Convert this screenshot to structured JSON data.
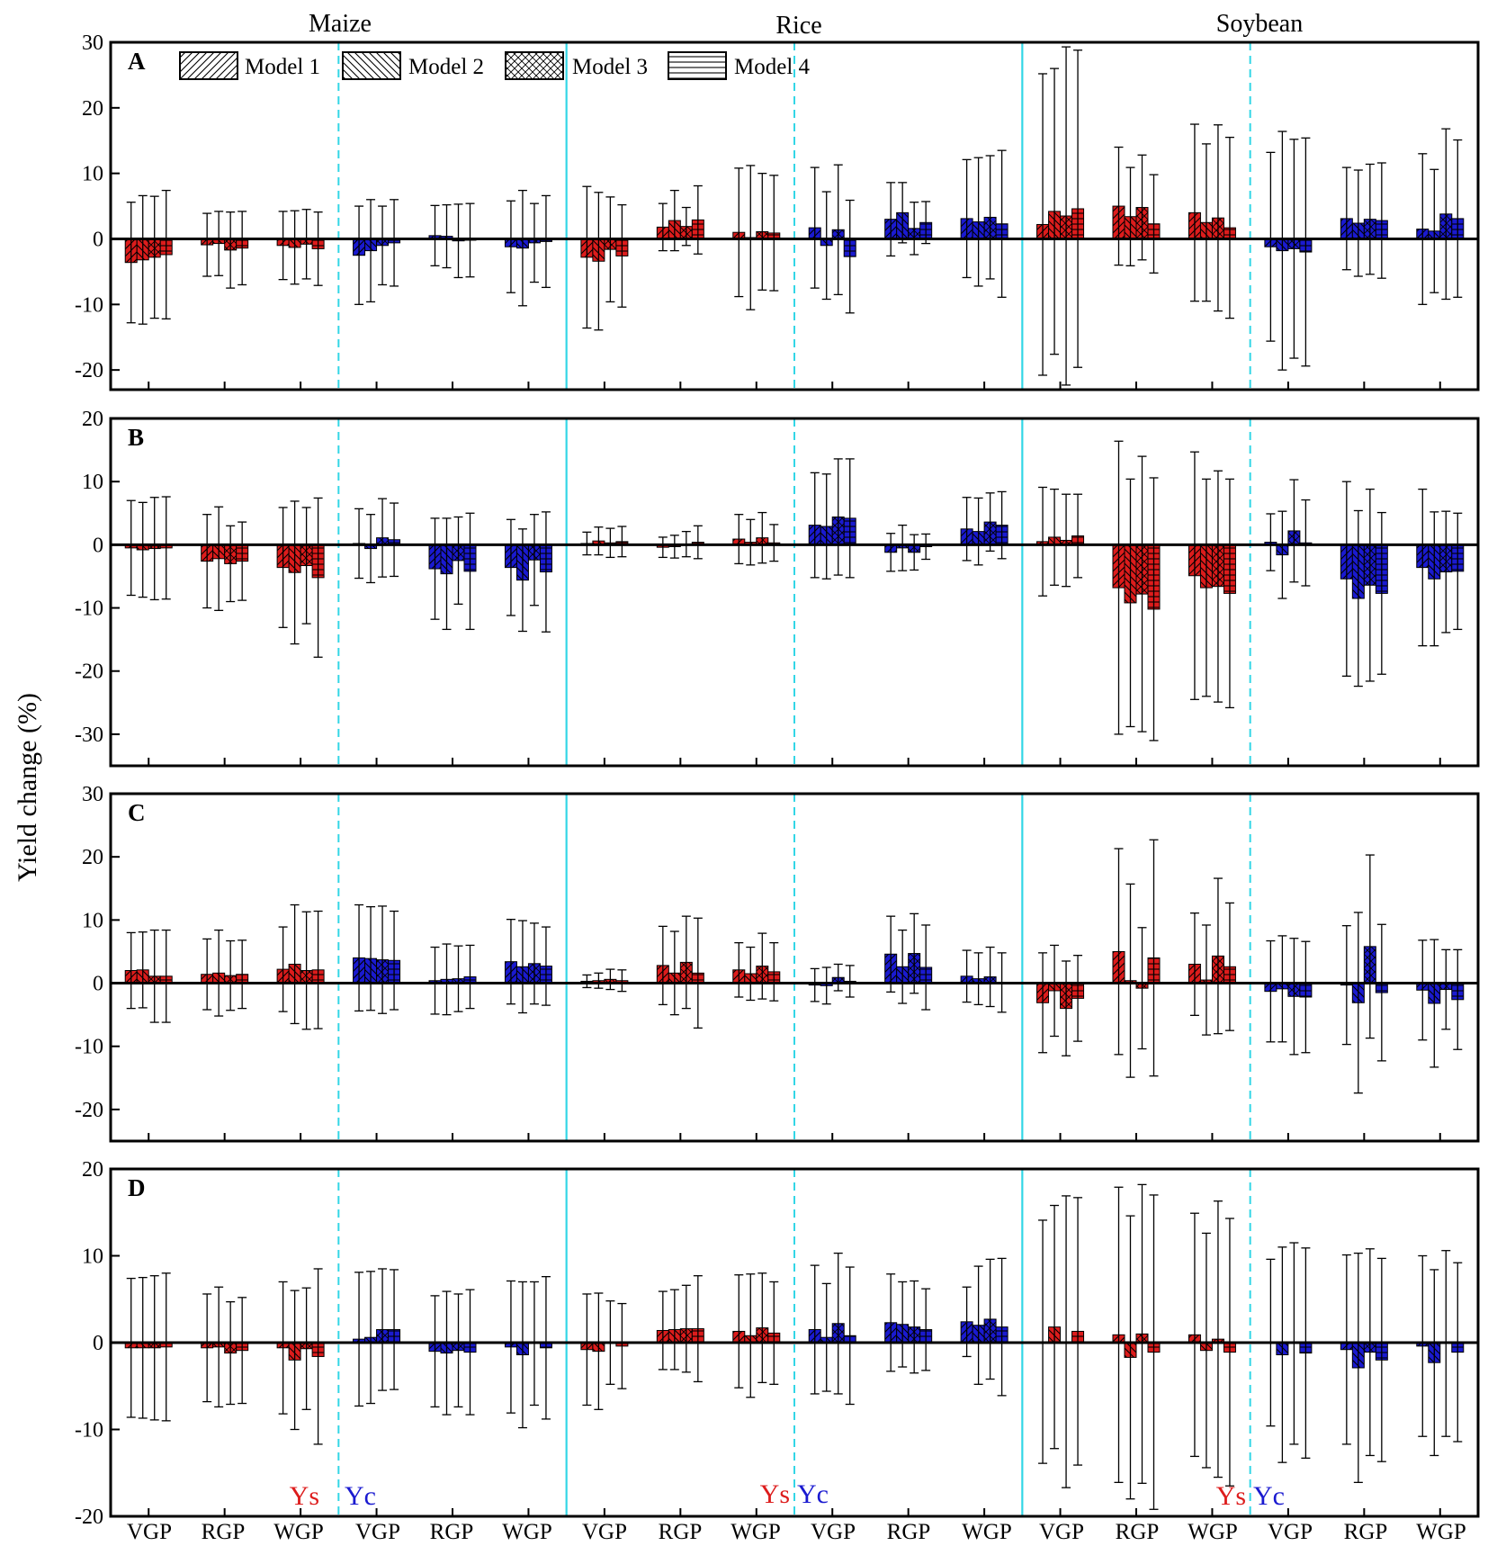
{
  "colors": {
    "ys": "#dd1c1c",
    "yc": "#1a1ad0",
    "separator": "#33d6e6",
    "axis": "#000000"
  },
  "chart_data": {
    "type": "bar",
    "ylabel": "Yield change (%)",
    "crops": [
      "Maize",
      "Rice",
      "Soybean"
    ],
    "groups": [
      "Ys",
      "Yc"
    ],
    "periods": [
      "VGP",
      "RGP",
      "WGP"
    ],
    "models": [
      "Model 1",
      "Model 2",
      "Model 3",
      "Model 4"
    ],
    "patterns": [
      "diagonal-right",
      "diagonal-left",
      "crosshatch",
      "horizontal-lines"
    ],
    "x_tick_labels": [
      "VGP",
      "RGP",
      "WGP",
      "VGP",
      "RGP",
      "WGP",
      "VGP",
      "RGP",
      "WGP",
      "VGP",
      "RGP",
      "WGP",
      "VGP",
      "RGP",
      "WGP",
      "VGP",
      "RGP",
      "WGP"
    ],
    "group_labels": [
      {
        "ys": "Ys",
        "yc": "Yc"
      },
      {
        "ys": "Ys",
        "yc": "Yc"
      },
      {
        "ys": "Ys",
        "yc": "Yc"
      }
    ],
    "panels": [
      {
        "label": "A",
        "ylim": [
          -23,
          30
        ],
        "yticks": [
          -20,
          -10,
          0,
          10,
          20,
          30
        ],
        "ytick_labels": [
          "-20",
          "-10",
          "0",
          "10",
          "20",
          "30"
        ],
        "values": [
          [
            -3.6,
            -3.2,
            -2.8,
            -2.4
          ],
          [
            -0.9,
            -0.7,
            -1.7,
            -1.4
          ],
          [
            -1.0,
            -1.3,
            -0.8,
            -1.5
          ],
          [
            -2.5,
            -1.8,
            -1.0,
            -0.6
          ],
          [
            0.5,
            0.4,
            -0.3,
            -0.2
          ],
          [
            -1.2,
            -1.4,
            -0.6,
            -0.4
          ],
          [
            -2.8,
            -3.4,
            -1.6,
            -2.6
          ],
          [
            1.8,
            2.8,
            1.9,
            2.9
          ],
          [
            1.0,
            0.2,
            1.1,
            0.9
          ],
          [
            1.7,
            -1.0,
            1.4,
            -2.7
          ],
          [
            3.0,
            4.0,
            1.6,
            2.5
          ],
          [
            3.1,
            2.6,
            3.3,
            2.3
          ],
          [
            2.2,
            4.2,
            3.5,
            4.6
          ],
          [
            5.0,
            3.4,
            4.8,
            2.3
          ],
          [
            4.0,
            2.5,
            3.2,
            1.7
          ],
          [
            -1.2,
            -1.8,
            -1.5,
            -2.0
          ],
          [
            3.1,
            2.4,
            3.0,
            2.8
          ],
          [
            1.5,
            1.2,
            3.8,
            3.1
          ]
        ],
        "errors": [
          [
            9.2,
            9.8,
            9.3,
            9.8
          ],
          [
            4.8,
            4.9,
            5.8,
            5.6
          ],
          [
            5.2,
            5.6,
            5.3,
            5.6
          ],
          [
            7.5,
            7.8,
            6.0,
            6.6
          ],
          [
            4.6,
            4.8,
            5.6,
            5.6
          ],
          [
            7.0,
            8.8,
            6.0,
            7.0
          ],
          [
            10.8,
            10.5,
            8.0,
            7.8
          ],
          [
            3.6,
            4.6,
            2.9,
            5.2
          ],
          [
            9.8,
            11.0,
            8.9,
            8.8
          ],
          [
            9.2,
            8.2,
            9.9,
            8.6
          ],
          [
            5.6,
            4.6,
            4.0,
            3.2
          ],
          [
            9.0,
            9.8,
            9.4,
            11.2
          ],
          [
            23.0,
            21.8,
            25.8,
            24.2
          ],
          [
            9.0,
            7.5,
            8.0,
            7.5
          ],
          [
            13.5,
            12.0,
            14.2,
            13.8
          ],
          [
            14.4,
            18.2,
            16.7,
            17.4
          ],
          [
            7.8,
            8.1,
            8.4,
            8.8
          ],
          [
            11.5,
            9.4,
            13.0,
            12.0
          ]
        ]
      },
      {
        "label": "B",
        "ylim": [
          -35,
          20
        ],
        "yticks": [
          -30,
          -20,
          -10,
          0,
          10,
          20
        ],
        "ytick_labels": [
          "-30",
          "-20",
          "-10",
          "0",
          "10",
          "20"
        ],
        "values": [
          [
            -0.5,
            -0.8,
            -0.6,
            -0.5
          ],
          [
            -2.6,
            -2.2,
            -3.0,
            -2.6
          ],
          [
            -3.6,
            -4.4,
            -3.3,
            -5.2
          ],
          [
            0.2,
            -0.6,
            1.1,
            0.8
          ],
          [
            -3.8,
            -4.6,
            -2.5,
            -4.2
          ],
          [
            -3.6,
            -5.6,
            -2.4,
            -4.3
          ],
          [
            0.2,
            0.6,
            0.3,
            0.5
          ],
          [
            -0.4,
            -0.3,
            0.1,
            0.4
          ],
          [
            0.9,
            0.4,
            1.1,
            0.3
          ],
          [
            3.1,
            2.9,
            4.4,
            4.2
          ],
          [
            -1.2,
            -0.5,
            -1.2,
            -0.3
          ],
          [
            2.5,
            2.1,
            3.6,
            3.1
          ],
          [
            0.5,
            1.2,
            0.7,
            1.4
          ],
          [
            -6.8,
            -9.2,
            -7.8,
            -10.2
          ],
          [
            -4.9,
            -6.8,
            -6.6,
            -7.7
          ],
          [
            0.4,
            -1.6,
            2.2,
            0.3
          ],
          [
            -5.4,
            -8.5,
            -6.4,
            -7.7
          ],
          [
            -3.6,
            -5.4,
            -4.3,
            -4.2
          ]
        ],
        "errors": [
          [
            7.5,
            7.5,
            8.1,
            8.1
          ],
          [
            7.4,
            8.2,
            6.0,
            6.2
          ],
          [
            9.5,
            11.3,
            9.2,
            12.6
          ],
          [
            5.5,
            5.4,
            6.2,
            5.8
          ],
          [
            8.0,
            8.8,
            6.9,
            9.2
          ],
          [
            7.6,
            8.1,
            7.2,
            9.5
          ],
          [
            1.8,
            2.2,
            2.3,
            2.4
          ],
          [
            1.6,
            1.8,
            2.0,
            2.6
          ],
          [
            3.9,
            3.6,
            4.0,
            2.9
          ],
          [
            8.3,
            8.3,
            9.2,
            9.4
          ],
          [
            3.0,
            3.6,
            2.8,
            2.0
          ],
          [
            5.0,
            5.3,
            4.6,
            5.3
          ],
          [
            8.6,
            7.6,
            7.3,
            6.6
          ],
          [
            23.2,
            19.6,
            21.8,
            20.8
          ],
          [
            19.6,
            17.2,
            18.3,
            18.1
          ],
          [
            4.5,
            6.9,
            8.1,
            6.8
          ],
          [
            15.4,
            13.9,
            15.2,
            12.8
          ],
          [
            12.4,
            10.6,
            9.6,
            9.2
          ]
        ]
      },
      {
        "label": "C",
        "ylim": [
          -25,
          30
        ],
        "yticks": [
          -20,
          -10,
          0,
          10,
          20,
          30
        ],
        "ytick_labels": [
          "-20",
          "-10",
          "0",
          "10",
          "20",
          "30"
        ],
        "values": [
          [
            2.0,
            2.1,
            1.1,
            1.1
          ],
          [
            1.4,
            1.6,
            1.2,
            1.4
          ],
          [
            2.2,
            3.0,
            2.0,
            2.1
          ],
          [
            4.0,
            3.9,
            3.7,
            3.6
          ],
          [
            0.4,
            0.6,
            0.7,
            1.0
          ],
          [
            3.4,
            2.6,
            3.1,
            2.7
          ],
          [
            0.3,
            0.4,
            0.6,
            0.4
          ],
          [
            2.8,
            1.6,
            3.3,
            1.6
          ],
          [
            2.1,
            1.5,
            2.7,
            1.8
          ],
          [
            -0.3,
            -0.4,
            0.9,
            0.3
          ],
          [
            4.6,
            2.6,
            4.7,
            2.5
          ],
          [
            1.1,
            0.7,
            1.0,
            0.1
          ],
          [
            -3.1,
            -1.2,
            -4.0,
            -2.4
          ],
          [
            5.0,
            0.4,
            -0.8,
            4.0
          ],
          [
            3.0,
            0.5,
            4.3,
            2.6
          ],
          [
            -1.3,
            -0.9,
            -2.1,
            -2.2
          ],
          [
            -0.3,
            -3.1,
            5.8,
            -1.5
          ],
          [
            -1.1,
            -3.2,
            -1.0,
            -2.6
          ]
        ],
        "errors": [
          [
            6.0,
            6.0,
            7.3,
            7.3
          ],
          [
            5.6,
            6.8,
            5.5,
            5.4
          ],
          [
            6.7,
            9.4,
            9.3,
            9.3
          ],
          [
            8.4,
            8.2,
            8.5,
            7.8
          ],
          [
            5.3,
            5.6,
            5.2,
            5.0
          ],
          [
            6.7,
            7.3,
            6.4,
            6.2
          ],
          [
            1.0,
            1.2,
            1.6,
            1.7
          ],
          [
            6.2,
            6.6,
            7.3,
            8.7
          ],
          [
            4.3,
            4.2,
            5.2,
            4.6
          ],
          [
            2.6,
            2.9,
            2.1,
            2.5
          ],
          [
            6.0,
            5.8,
            6.3,
            6.7
          ],
          [
            4.1,
            4.1,
            4.7,
            4.7
          ],
          [
            7.9,
            7.2,
            7.5,
            6.8
          ],
          [
            16.3,
            15.3,
            9.6,
            18.7
          ],
          [
            8.1,
            8.7,
            12.3,
            10.1
          ],
          [
            8.0,
            8.4,
            9.2,
            8.8
          ],
          [
            9.4,
            14.3,
            14.5,
            10.8
          ],
          [
            7.9,
            10.1,
            6.3,
            7.9
          ]
        ]
      },
      {
        "label": "D",
        "ylim": [
          -20,
          20
        ],
        "yticks": [
          -20,
          -10,
          0,
          10,
          20
        ],
        "ytick_labels": [
          "-20",
          "-10",
          "0",
          "10",
          "20"
        ],
        "values": [
          [
            -0.6,
            -0.6,
            -0.6,
            -0.5
          ],
          [
            -0.6,
            -0.5,
            -1.2,
            -0.9
          ],
          [
            -0.6,
            -2.0,
            -0.7,
            -1.6
          ],
          [
            0.4,
            0.6,
            1.5,
            1.5
          ],
          [
            -1.0,
            -1.2,
            -0.9,
            -1.1
          ],
          [
            -0.5,
            -1.4,
            -0.1,
            -0.6
          ],
          [
            -0.8,
            -1.0,
            0.0,
            -0.4
          ],
          [
            1.4,
            1.5,
            1.6,
            1.6
          ],
          [
            1.3,
            0.8,
            1.7,
            1.1
          ],
          [
            1.5,
            0.6,
            2.2,
            0.8
          ],
          [
            2.3,
            2.1,
            1.8,
            1.5
          ],
          [
            2.4,
            2.0,
            2.7,
            1.8
          ],
          [
            0.1,
            1.8,
            0.1,
            1.3
          ],
          [
            0.9,
            -1.7,
            1.0,
            -1.1
          ],
          [
            0.9,
            -0.9,
            0.4,
            -1.1
          ],
          [
            0.0,
            -1.4,
            -0.1,
            -1.2
          ],
          [
            -0.8,
            -2.9,
            -1.1,
            -2.0
          ],
          [
            -0.4,
            -2.3,
            -0.1,
            -1.1
          ]
        ],
        "errors": [
          [
            8.0,
            8.1,
            8.3,
            8.5
          ],
          [
            6.2,
            6.9,
            5.9,
            6.1
          ],
          [
            7.6,
            8.0,
            7.0,
            10.1
          ],
          [
            7.7,
            7.6,
            7.0,
            6.9
          ],
          [
            6.4,
            7.1,
            6.5,
            7.2
          ],
          [
            7.6,
            8.4,
            7.1,
            8.2
          ],
          [
            6.4,
            6.7,
            4.8,
            4.9
          ],
          [
            4.5,
            4.6,
            5.0,
            6.1
          ],
          [
            6.5,
            7.1,
            6.3,
            5.9
          ],
          [
            7.4,
            6.2,
            8.1,
            7.9
          ],
          [
            5.6,
            4.9,
            5.3,
            4.7
          ],
          [
            4.0,
            6.8,
            6.9,
            7.9
          ],
          [
            14.0,
            14.0,
            16.8,
            15.4
          ],
          [
            17.0,
            16.3,
            17.2,
            18.1
          ],
          [
            14.0,
            13.5,
            15.9,
            15.4
          ],
          [
            9.6,
            12.4,
            11.6,
            12.1
          ],
          [
            10.9,
            13.2,
            11.9,
            11.7
          ],
          [
            10.4,
            10.7,
            10.7,
            10.3
          ]
        ]
      }
    ]
  }
}
